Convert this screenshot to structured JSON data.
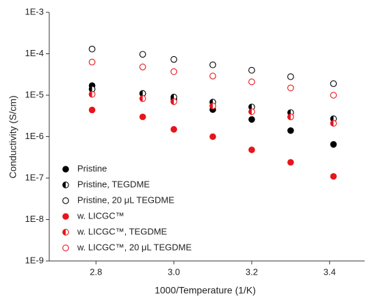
{
  "chart_data": {
    "type": "scatter",
    "x_label": "1000/Temperature (1/K)",
    "y_label": "Conductivity (S/cm)",
    "log_y": true,
    "xlim": [
      2.68,
      3.49
    ],
    "xticks": [
      {
        "value": 2.8,
        "label": "2.8"
      },
      {
        "value": 3.0,
        "label": "3.0"
      },
      {
        "value": 3.2,
        "label": "3.2"
      },
      {
        "value": 3.4,
        "label": "3.4"
      }
    ],
    "ylim": [
      1e-09,
      0.001
    ],
    "yticks": [
      {
        "value": 1e-09,
        "label": "1E-9"
      },
      {
        "value": 1e-08,
        "label": "1E-8"
      },
      {
        "value": 1e-07,
        "label": "1E-7"
      },
      {
        "value": 1e-06,
        "label": "1E-6"
      },
      {
        "value": 1e-05,
        "label": "1E-5"
      },
      {
        "value": 0.0001,
        "label": "1E-4"
      },
      {
        "value": 0.001,
        "label": "1E-3"
      }
    ],
    "x": [
      2.79,
      2.92,
      3.0,
      3.1,
      3.2,
      3.3,
      3.41
    ],
    "legend": "lower left",
    "series": [
      {
        "name": "Pristine",
        "color": "#000000",
        "marker": "filled",
        "values": [
          1.7e-05,
          1.1e-05,
          8e-06,
          4.5e-06,
          2.6e-06,
          1.4e-06,
          6.5e-07
        ]
      },
      {
        "name": "Pristine, TEGDME",
        "color": "#000000",
        "marker": "half",
        "values": [
          1.4e-05,
          1.1e-05,
          9e-06,
          6.8e-06,
          5.2e-06,
          3.8e-06,
          2.7e-06
        ]
      },
      {
        "name": "Pristine, 20 μL TEGDME",
        "color": "#000000",
        "marker": "open",
        "values": [
          0.00013,
          9.7e-05,
          7.3e-05,
          5.4e-05,
          4e-05,
          2.8e-05,
          1.9e-05
        ]
      },
      {
        "name": "w. LICGC™",
        "color": "#e8141b",
        "marker": "filled",
        "values": [
          4.4e-06,
          3e-06,
          1.5e-06,
          1e-06,
          4.8e-07,
          2.4e-07,
          1.1e-07
        ]
      },
      {
        "name": "w. LICGC™, TEGDME",
        "color": "#e8141b",
        "marker": "half",
        "values": [
          1.05e-05,
          8.3e-06,
          7e-06,
          5.5e-06,
          4e-06,
          3e-06,
          2.1e-06
        ]
      },
      {
        "name": "w. LICGC™, 20 μL TEGDME",
        "color": "#e8141b",
        "marker": "open",
        "values": [
          6.3e-05,
          4.8e-05,
          3.7e-05,
          2.9e-05,
          2.1e-05,
          1.5e-05,
          1e-05
        ]
      }
    ]
  }
}
